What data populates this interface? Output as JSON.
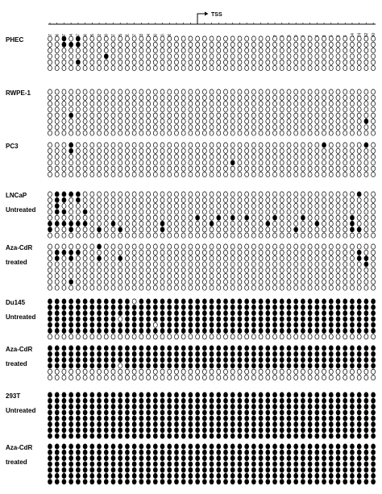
{
  "header": {
    "tss_label": "TSS"
  },
  "positions": [
    "-417",
    "-396",
    "-387",
    "-264",
    "-237",
    "-226",
    "-205",
    "-192",
    "-180",
    "-177",
    "-165",
    "-161",
    "-147",
    "-133",
    "-124",
    "-120",
    "-110",
    "-106",
    "-92",
    "-85",
    "-78",
    "-72",
    "-62",
    "-48",
    "-45",
    "-36",
    "-33",
    "-26",
    "-14",
    "-6",
    "-1",
    "+5",
    "+12",
    "+16",
    "+20",
    "+30",
    "+36",
    "+47",
    "+54",
    "+63",
    "+65",
    "+68",
    "+96",
    "+114",
    "+124",
    "+132",
    "+140"
  ],
  "legend": {
    "methylated_color": "#000000",
    "unmethylated_color": "#ffffff",
    "methylated": "filled",
    "unmethylated": "open"
  },
  "samples": [
    {
      "label_lines": [
        "PHEC"
      ],
      "clones": [
        "00101000000000000000000000000000000000000000000",
        "00111000000000000000000000000000000000000000000",
        "00000000000000000000000000000000000000000000000",
        "00000000100000000000000000000000000000000000000",
        "00001000000000000000000000000000000000000000000",
        "00000000000000000000000000000000000000000000000"
      ]
    },
    {
      "label_lines": [
        "RWPE-1"
      ],
      "clones": [
        "00000000000000000000000000000000000000000000000",
        "00000000000000000000000000000000000000000000000",
        "00000000000000000000000000000000000000000000000",
        "00000000000000000000000000000000000000000000000",
        "00010000000000000000000000000000000000000000000",
        "00000000000000000000000000000000000000000000010",
        "00000000000000000000000000000000000000000000000",
        "00000000000000000000000000000000000000000000000"
      ]
    },
    {
      "label_lines": [
        "PC3"
      ],
      "clones": [
        "00010000000000000000000000000000000000010000010",
        "00010000000000000000000000000000000000000000000",
        "00000000000000000000000000000000000000000000000",
        "00000000000000000000000000100000000000000000000",
        "00000000000000000000000000000000000000000000000",
        "00000000000000000000000000000000000000000000000"
      ]
    },
    {
      "label_lines": [
        "LNCaP",
        "Untreated"
      ],
      "clones": [
        "01111000000000000000000000000000000000000000100",
        "01101000000000000000000000000000000000000000000",
        "01000000000000000000000000000000000000000000000",
        "01100100000000000000000000000000000000000000000",
        "00000000000000000000010010101000100010000001000",
        "11111100010000001000000100000001000000100001000",
        "10010001001000001000000000000000000100000001100",
        "00000000000000000000000000000000000000000000000"
      ]
    },
    {
      "label_lines": [
        "Aza-CdR",
        "treated"
      ],
      "clones": [
        "00000001000000000000000000000000000000000000000",
        "01111000000000000000000000000000000000000000100",
        "01010001001000000000000000000000000000000000110",
        "00000000000000000000000000000000000000000000010",
        "00000000000000000000000000000000000000000000000",
        "00000000000000000000000000000000000000000000000",
        "00010000000000000000000000000000000000000000000",
        "00000000000000000000000000000000000000000000000"
      ]
    },
    {
      "label_lines": [
        "Du145",
        "Untreated"
      ],
      "clones": [
        "11111111111101111111111111111111111111111111111",
        "11111111111111111111111111111111111111111111111",
        "11111111111111111111111111111111111111111111111",
        "11111111110111111111111111111111111111111111111",
        "11111111111111101111111111111111111111111111111",
        "11111111111111111111111111111111111111111111111",
        "00000000000000000000000000000000000000000000000"
      ]
    },
    {
      "label_lines": [
        "Aza-CdR",
        "treated"
      ],
      "clones": [
        "11111111111111111111111111111111111111111111111",
        "11111111111111111111111111111111111111111111111",
        "11111111111111111111111111111111111111111111111",
        "11111111110111111111111111111111111111111111111",
        "00000000000000000000000000000000000000000000000",
        "00000000000000000000000000000000000000000000000"
      ]
    },
    {
      "label_lines": [
        "293T",
        "Untreated"
      ],
      "clones": [
        "11111111111111111111111111111111111111111111111",
        "11111111111111111111111111111111111111111111111",
        "11111111111111111111111111111111111111111111111",
        "11111111111111111111111111111111111111111111111",
        "11111111111111111111111111111111111111111111111",
        "11111111111111111111111111111111111111111111111",
        "11111111111111111111111111111111111111111111111",
        "11111111111111111111111111111111111111111111111"
      ]
    },
    {
      "label_lines": [
        "Aza-CdR",
        "treated"
      ],
      "clones": [
        "11111111111111111111111111111111111111111111111",
        "11111111111111111111111111111111111111111111111",
        "11111111111111111111111111111111111111111111111",
        "11111111111111111111111111111111111111111111111",
        "11111111111111111111111111111111111111111111111",
        "11111111111111111111111111111111111111111111111",
        "11111111111111111111111111111111111111111111111"
      ]
    }
  ]
}
